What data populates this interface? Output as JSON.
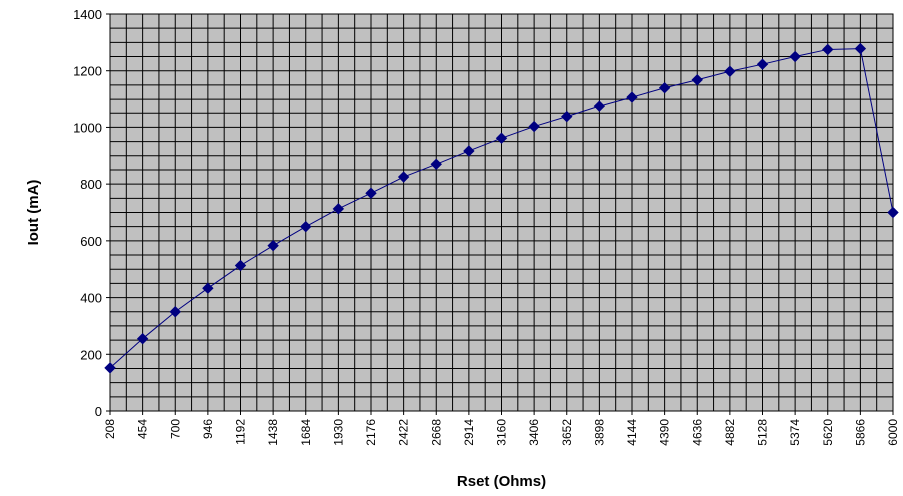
{
  "chart_data": {
    "type": "line",
    "title": "",
    "xlabel": "Rset (Ohms)",
    "ylabel": "Iout (mA)",
    "ylim": [
      0,
      1400
    ],
    "y_ticks": [
      "0",
      "200",
      "400",
      "600",
      "800",
      "1000",
      "1200",
      "1400"
    ],
    "categories": [
      "208",
      "454",
      "700",
      "946",
      "1192",
      "1438",
      "1684",
      "1930",
      "2176",
      "2422",
      "2668",
      "2914",
      "3160",
      "3406",
      "3652",
      "3898",
      "4144",
      "4390",
      "4636",
      "4882",
      "5128",
      "5374",
      "5620",
      "5866",
      "6000"
    ],
    "series": [
      {
        "values": [
          152,
          255,
          350,
          433,
          513,
          583,
          650,
          713,
          768,
          825,
          870,
          917,
          962,
          1003,
          1038,
          1075,
          1107,
          1140,
          1168,
          1198,
          1223,
          1250,
          1275,
          1278,
          700
        ]
      }
    ],
    "grid": true,
    "legend": "none",
    "colors": {
      "plot_background": "#c0c0c0",
      "gridline": "#000000",
      "series_line": "#000080",
      "marker": "#000080"
    }
  }
}
